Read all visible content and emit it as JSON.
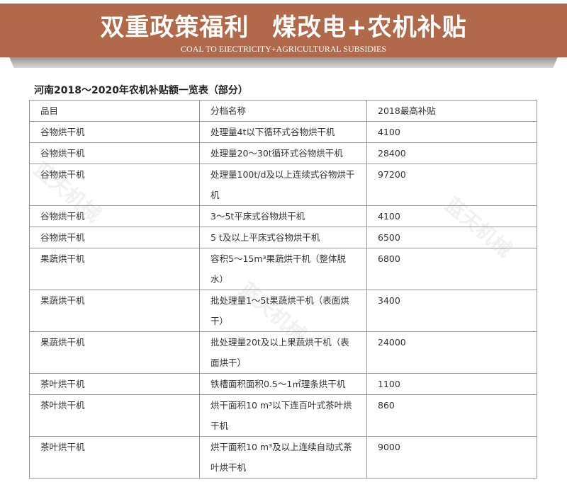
{
  "banner": {
    "title_part1": "双重政策福利",
    "title_part2": "煤改电+农机补贴",
    "subtitle": "COAL TO EIECTRICITY+AGRICULTURAL SUBSIDIES",
    "color": "#b0694a"
  },
  "heading": "河南2018～2020年农机补贴额一览表（部分）",
  "watermark": "蓝天机械",
  "table": {
    "headers": [
      "品目",
      "分档名称",
      "2018最高补贴"
    ],
    "rows": [
      [
        "谷物烘干机",
        "处理量4t以下循环式谷物烘干机",
        "4100"
      ],
      [
        "谷物烘干机",
        "处理量20～30t循环式谷物烘干机",
        "28400"
      ],
      [
        "谷物烘干机",
        "处理量100t/d及以上连续式谷物烘干机",
        "97200"
      ],
      [
        "谷物烘干机",
        "3～5t平床式谷物烘干机",
        "4100"
      ],
      [
        "谷物烘干机",
        "5 t及以上平床式谷物烘干机",
        "6500"
      ],
      [
        "果蔬烘干机",
        "容积5～15m³果蔬烘干机（整体脱水）",
        "6800"
      ],
      [
        "果蔬烘干机",
        "批处理量1～5t果蔬烘干机（表面烘干）",
        "3400"
      ],
      [
        "果蔬烘干机",
        "批处理量20t及以上果蔬烘干机（表面烘干）",
        "24000"
      ],
      [
        "茶叶烘干机",
        "铁槽面积面积0.5～1㎡理条烘干机",
        "1100"
      ],
      [
        "茶叶烘干机",
        "烘干面积10 m³以下连百叶式茶叶烘干机",
        "860"
      ],
      [
        "茶叶烘干机",
        "烘干面积10 m³及以上连续自动式茶叶烘干机",
        "9000"
      ]
    ]
  }
}
